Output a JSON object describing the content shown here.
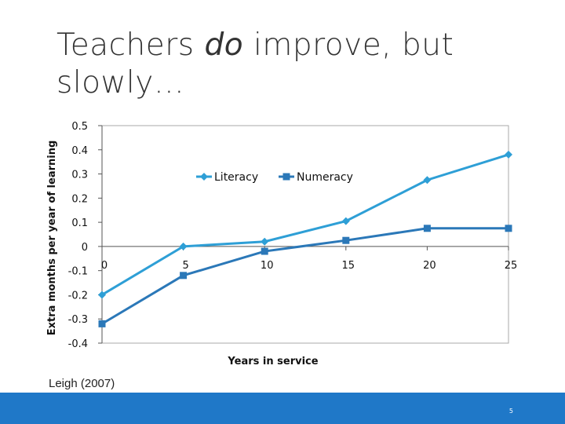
{
  "slide": {
    "title_pre": "Teachers ",
    "title_emph": "do",
    "title_post": " improve, but slowly…",
    "source": "Leigh (2007)",
    "page_number": "5",
    "footer_color": "#1f78c8"
  },
  "chart_data": {
    "type": "line",
    "title": "",
    "xlabel": "Years in service",
    "ylabel": "Extra months per year of learning",
    "x": [
      0,
      5,
      10,
      15,
      20,
      25
    ],
    "xlim": [
      0,
      25
    ],
    "ylim": [
      -0.4,
      0.5
    ],
    "x_ticks": [
      "0",
      "5",
      "10",
      "15",
      "20",
      "25"
    ],
    "y_ticks": [
      "0.5",
      "0.4",
      "0.3",
      "0.2",
      "0.1",
      "0",
      "-0.1",
      "-0.2",
      "-0.3",
      "-0.4"
    ],
    "y_tick_values": [
      0.5,
      0.4,
      0.3,
      0.2,
      0.1,
      0,
      -0.1,
      -0.2,
      -0.3,
      -0.4
    ],
    "grid": false,
    "legend_position": "top-center",
    "series": [
      {
        "name": "Literacy",
        "marker": "diamond",
        "color": "#2e9fd6",
        "values": [
          -0.2,
          0.0,
          0.02,
          0.105,
          0.275,
          0.38
        ]
      },
      {
        "name": "Numeracy",
        "marker": "square",
        "color": "#2b78b8",
        "values": [
          -0.32,
          -0.12,
          -0.02,
          0.025,
          0.075,
          0.075
        ]
      }
    ]
  }
}
